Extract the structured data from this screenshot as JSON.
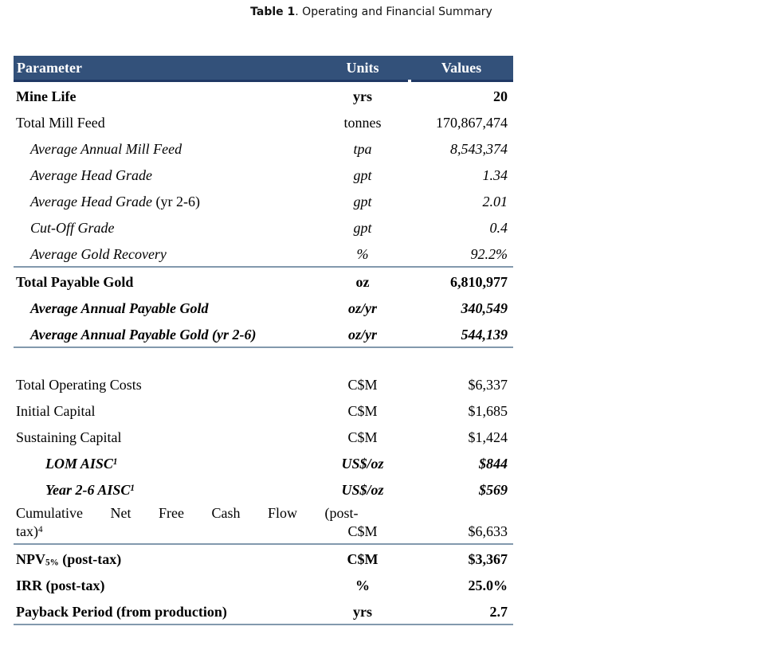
{
  "title": {
    "prefix": "Table 1",
    "rest": ". Operating and Financial Summary"
  },
  "colors": {
    "header_bg": "#33517a",
    "header_text": "#ffffff",
    "header_underline": "#1f3864",
    "divider": "#8299ad",
    "body_text": "#000000"
  },
  "table": {
    "columns": [
      "Parameter",
      "Units",
      "Values"
    ],
    "rows": [
      {
        "param_parts": [
          {
            "text": "Mine Life"
          }
        ],
        "units": "yrs",
        "value": "20",
        "style": "bold",
        "indent": 0
      },
      {
        "param_parts": [
          {
            "text": "Total Mill Feed"
          }
        ],
        "units": "tonnes",
        "value": "170,867,474",
        "style": "regular",
        "indent": 0
      },
      {
        "param_parts": [
          {
            "text": "Average Annual Mill Feed"
          }
        ],
        "units": "tpa",
        "value": "8,543,374",
        "style": "italic",
        "indent": 1
      },
      {
        "param_parts": [
          {
            "text": "Average Head Grade"
          }
        ],
        "units": "gpt",
        "value": "1.34",
        "style": "italic",
        "indent": 1
      },
      {
        "param_parts": [
          {
            "text": "Average Head Grade"
          },
          {
            "text": " (yr 2-6)",
            "type": "upright"
          }
        ],
        "units": "gpt",
        "value": "2.01",
        "style": "italic",
        "indent": 1
      },
      {
        "param_parts": [
          {
            "text": "Cut-Off Grade"
          }
        ],
        "units": "gpt",
        "value": "0.4",
        "style": "italic",
        "indent": 1
      },
      {
        "param_parts": [
          {
            "text": "Average Gold Recovery"
          }
        ],
        "units": "%",
        "value": "92.2%",
        "style": "italic",
        "indent": 1,
        "divider_after": true
      },
      {
        "param_parts": [
          {
            "text": "Total Payable Gold"
          }
        ],
        "units": "oz",
        "value": "6,810,977",
        "style": "bold",
        "indent": 0
      },
      {
        "param_parts": [
          {
            "text": "Average Annual Payable Gold"
          }
        ],
        "units": "oz/yr",
        "value": "340,549",
        "style": "bolditalic",
        "indent": 1
      },
      {
        "param_parts": [
          {
            "text": "Average Annual Payable Gold (yr 2-6)"
          }
        ],
        "units": "oz/yr",
        "value": "544,139",
        "style": "bolditalic",
        "indent": 1,
        "divider_after": true,
        "gap_after": true
      },
      {
        "param_parts": [
          {
            "text": "Total Operating Costs"
          }
        ],
        "units": "C$M",
        "value": "$6,337",
        "style": "regular",
        "indent": 0
      },
      {
        "param_parts": [
          {
            "text": "Initial Capital"
          }
        ],
        "units": "C$M",
        "value": "$1,685",
        "style": "regular",
        "indent": 0
      },
      {
        "param_parts": [
          {
            "text": "Sustaining Capital"
          }
        ],
        "units": "C$M",
        "value": "$1,424",
        "style": "regular",
        "indent": 0
      },
      {
        "param_parts": [
          {
            "text": "LOM AISC"
          },
          {
            "text": "1",
            "type": "sup"
          }
        ],
        "units": "US$/oz",
        "value": "$844",
        "style": "bolditalic",
        "indent": 2
      },
      {
        "param_parts": [
          {
            "text": "Year 2-6 AISC"
          },
          {
            "text": "1",
            "type": "sup"
          }
        ],
        "units": "US$/oz",
        "value": "$569",
        "style": "bolditalic",
        "indent": 2
      },
      {
        "param_parts": [
          {
            "text": "Cumulative Net Free Cash Flow (post-",
            "type": "line1"
          },
          {
            "text": "tax)"
          },
          {
            "text": "4",
            "type": "sup"
          }
        ],
        "units": "C$M",
        "value": "$6,633",
        "style": "regular",
        "indent": 0,
        "justify": true,
        "divider_after": true
      },
      {
        "param_parts": [
          {
            "text": "NPV"
          },
          {
            "text": "5%",
            "type": "sub"
          },
          {
            "text": " (post-tax)"
          }
        ],
        "units": "C$M",
        "value": "$3,367",
        "style": "bold",
        "indent": 0
      },
      {
        "param_parts": [
          {
            "text": "IRR (post-tax)"
          }
        ],
        "units": "%",
        "value": "25.0%",
        "style": "bold",
        "indent": 0
      },
      {
        "param_parts": [
          {
            "text": "Payback Period (from production)"
          }
        ],
        "units": "yrs",
        "value": "2.7",
        "style": "bold",
        "indent": 0,
        "divider_after": true
      }
    ]
  }
}
